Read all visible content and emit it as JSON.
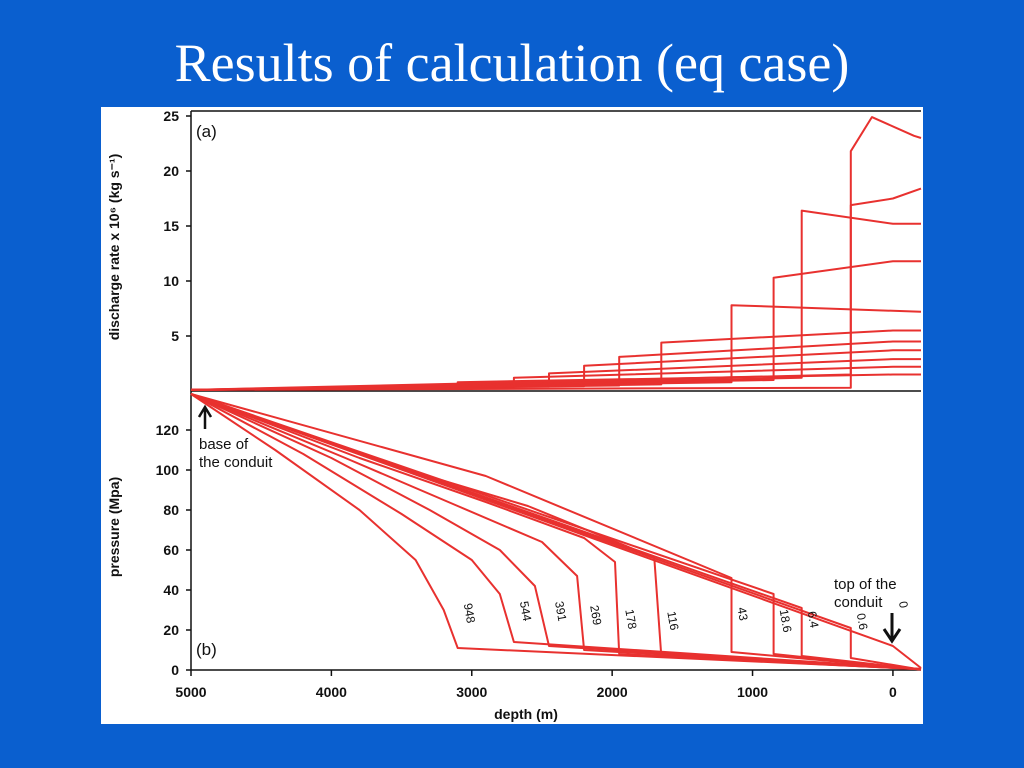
{
  "slide": {
    "title": "Results of calculation (eq case)"
  },
  "colors": {
    "background": "#0a5fcf",
    "curve": "#e8312f",
    "panel": "#ffffff",
    "axis": "#111111"
  },
  "chart_data": [
    {
      "type": "line",
      "panel": "(a)",
      "ylabel": "discharge rate x 10⁶ (kg s⁻¹)",
      "xlim": [
        5000,
        -200
      ],
      "ylim": [
        0,
        25
      ],
      "yticks": [
        5,
        10,
        15,
        20,
        25
      ],
      "series": [
        {
          "name": "",
          "points": [
            [
              5000,
              0.1
            ],
            [
              3100,
              0.3
            ],
            [
              3100,
              0.8
            ],
            [
              0,
              1.5
            ],
            [
              -200,
              1.5
            ]
          ]
        },
        {
          "name": "",
          "points": [
            [
              5000,
              0.1
            ],
            [
              2700,
              0.35
            ],
            [
              2700,
              1.2
            ],
            [
              0,
              2.2
            ],
            [
              -200,
              2.2
            ]
          ]
        },
        {
          "name": "",
          "points": [
            [
              5000,
              0.1
            ],
            [
              2450,
              0.4
            ],
            [
              2450,
              1.6
            ],
            [
              0,
              2.9
            ],
            [
              -200,
              2.9
            ]
          ]
        },
        {
          "name": "",
          "points": [
            [
              5000,
              0.1
            ],
            [
              2200,
              0.45
            ],
            [
              2200,
              2.3
            ],
            [
              0,
              3.7
            ],
            [
              -200,
              3.7
            ]
          ]
        },
        {
          "name": "",
          "points": [
            [
              5000,
              0.1
            ],
            [
              1950,
              0.5
            ],
            [
              1950,
              3.1
            ],
            [
              0,
              4.5
            ],
            [
              -200,
              4.5
            ]
          ]
        },
        {
          "name": "",
          "points": [
            [
              5000,
              0.1
            ],
            [
              1650,
              0.6
            ],
            [
              1650,
              4.4
            ],
            [
              0,
              5.5
            ],
            [
              -200,
              5.5
            ]
          ]
        },
        {
          "name": "",
          "points": [
            [
              5000,
              0.1
            ],
            [
              1150,
              0.8
            ],
            [
              1150,
              7.8
            ],
            [
              -200,
              7.2
            ]
          ]
        },
        {
          "name": "",
          "points": [
            [
              5000,
              0.1
            ],
            [
              850,
              1.0
            ],
            [
              850,
              10.3
            ],
            [
              0,
              11.8
            ],
            [
              -200,
              11.8
            ]
          ]
        },
        {
          "name": "",
          "points": [
            [
              5000,
              0.1
            ],
            [
              650,
              1.2
            ],
            [
              650,
              16.4
            ],
            [
              0,
              15.2
            ],
            [
              -200,
              15.2
            ]
          ]
        },
        {
          "name": "",
          "points": [
            [
              5000,
              0.1
            ],
            [
              300,
              1.5
            ],
            [
              300,
              16.9
            ],
            [
              0,
              17.5
            ],
            [
              -200,
              18.4
            ]
          ]
        },
        {
          "name": "",
          "points": [
            [
              5000,
              0.1
            ],
            [
              300,
              0.3
            ],
            [
              300,
              21.8
            ],
            [
              150,
              24.9
            ],
            [
              -150,
              23.2
            ],
            [
              -200,
              23.0
            ]
          ]
        }
      ]
    },
    {
      "type": "line",
      "panel": "(b)",
      "ylabel": "pressure (Mpa)",
      "xlabel": "depth (m)",
      "xlim": [
        5000,
        -200
      ],
      "ylim": [
        0,
        138
      ],
      "yticks": [
        0,
        20,
        40,
        60,
        80,
        100,
        120
      ],
      "xticks": [
        5000,
        4000,
        3000,
        2000,
        1000,
        0
      ],
      "annotations": [
        {
          "text_lines": [
            "base of",
            "the conduit"
          ]
        },
        {
          "text_lines": [
            "top of the",
            "conduit"
          ]
        }
      ],
      "series": [
        {
          "name": "948",
          "points": [
            [
              5000,
              138
            ],
            [
              4400,
              110
            ],
            [
              3800,
              80
            ],
            [
              3400,
              55
            ],
            [
              3200,
              30
            ],
            [
              3100,
              11
            ],
            [
              -200,
              0.5
            ]
          ]
        },
        {
          "name": "544",
          "points": [
            [
              5000,
              138
            ],
            [
              4200,
              108
            ],
            [
              3500,
              78
            ],
            [
              3000,
              55
            ],
            [
              2800,
              38
            ],
            [
              2700,
              14
            ],
            [
              -200,
              0.5
            ]
          ]
        },
        {
          "name": "391",
          "points": [
            [
              5000,
              138
            ],
            [
              4000,
              106
            ],
            [
              3300,
              80
            ],
            [
              2800,
              60
            ],
            [
              2550,
              42
            ],
            [
              2450,
              12
            ],
            [
              -200,
              0.5
            ]
          ]
        },
        {
          "name": "269",
          "points": [
            [
              5000,
              138
            ],
            [
              3900,
              106
            ],
            [
              3100,
              82
            ],
            [
              2500,
              64
            ],
            [
              2250,
              47
            ],
            [
              2200,
              10
            ],
            [
              -200,
              0.4
            ]
          ]
        },
        {
          "name": "178",
          "points": [
            [
              5000,
              138
            ],
            [
              3800,
              106
            ],
            [
              2900,
              84
            ],
            [
              2200,
              66
            ],
            [
              1980,
              54
            ],
            [
              1950,
              8
            ],
            [
              -200,
              0.4
            ]
          ]
        },
        {
          "name": "116",
          "points": [
            [
              5000,
              138
            ],
            [
              3600,
              103
            ],
            [
              2600,
              82
            ],
            [
              1900,
              62
            ],
            [
              1700,
              56
            ],
            [
              1650,
              7
            ],
            [
              -200,
              0.3
            ]
          ]
        },
        {
          "name": "43",
          "points": [
            [
              5000,
              138
            ],
            [
              2900,
              97
            ],
            [
              1150,
              46
            ],
            [
              1150,
              9
            ],
            [
              -200,
              0.3
            ]
          ]
        },
        {
          "name": "18.6",
          "points": [
            [
              5000,
              138
            ],
            [
              850,
              38
            ],
            [
              850,
              8
            ],
            [
              -200,
              0.3
            ]
          ]
        },
        {
          "name": "6.4",
          "points": [
            [
              5000,
              138
            ],
            [
              650,
              31
            ],
            [
              650,
              7
            ],
            [
              -200,
              0.2
            ]
          ]
        },
        {
          "name": "0.6",
          "points": [
            [
              5000,
              138
            ],
            [
              300,
              21
            ],
            [
              300,
              6
            ],
            [
              -200,
              0.2
            ]
          ]
        },
        {
          "name": "0",
          "points": [
            [
              5000,
              138
            ],
            [
              0,
              12
            ],
            [
              -200,
              1
            ]
          ]
        }
      ]
    }
  ]
}
